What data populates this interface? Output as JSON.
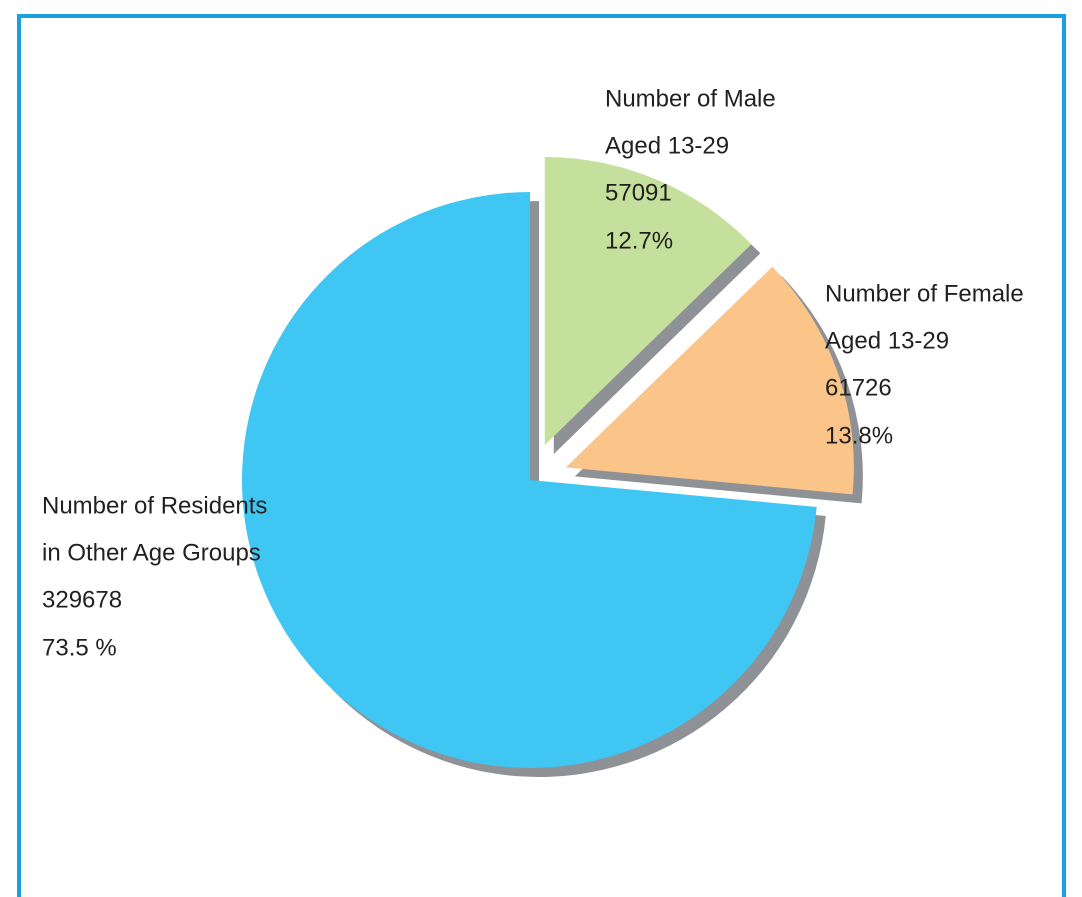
{
  "chart_data": {
    "type": "pie",
    "labels": [
      [
        "Number of Male",
        "Aged 13-29"
      ],
      [
        "Number of Female",
        "Aged 13-29"
      ],
      [
        "Number of Residents",
        "in Other Age Groups"
      ]
    ],
    "values": [
      57091,
      61726,
      329678
    ],
    "percent_labels": [
      "12.7%",
      "13.8%",
      "73.5 %"
    ],
    "colors": [
      "#c5df9c",
      "#fbc58a",
      "#3fc6f2"
    ],
    "explode": [
      true,
      true,
      false
    ]
  }
}
